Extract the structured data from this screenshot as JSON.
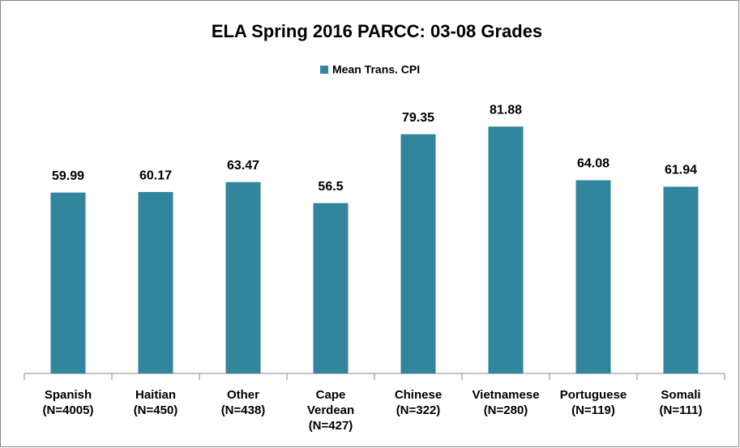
{
  "chart_data": {
    "type": "bar",
    "title": "ELA Spring 2016 PARCC: 03-08 Grades",
    "categories": [
      "Spanish (N=4005)",
      "Haitian (N=450)",
      "Other (N=438)",
      "Cape Verdean (N=427)",
      "Chinese (N=322)",
      "Vietnamese (N=280)",
      "Portuguese (N=119)",
      "Somali (N=111)"
    ],
    "series": [
      {
        "name": "Mean Trans. CPI",
        "color": "#31859c",
        "values": [
          59.99,
          60.17,
          63.47,
          56.5,
          79.35,
          81.88,
          64.08,
          61.94
        ]
      }
    ],
    "ylim": [
      0,
      90
    ],
    "legend": "top"
  }
}
